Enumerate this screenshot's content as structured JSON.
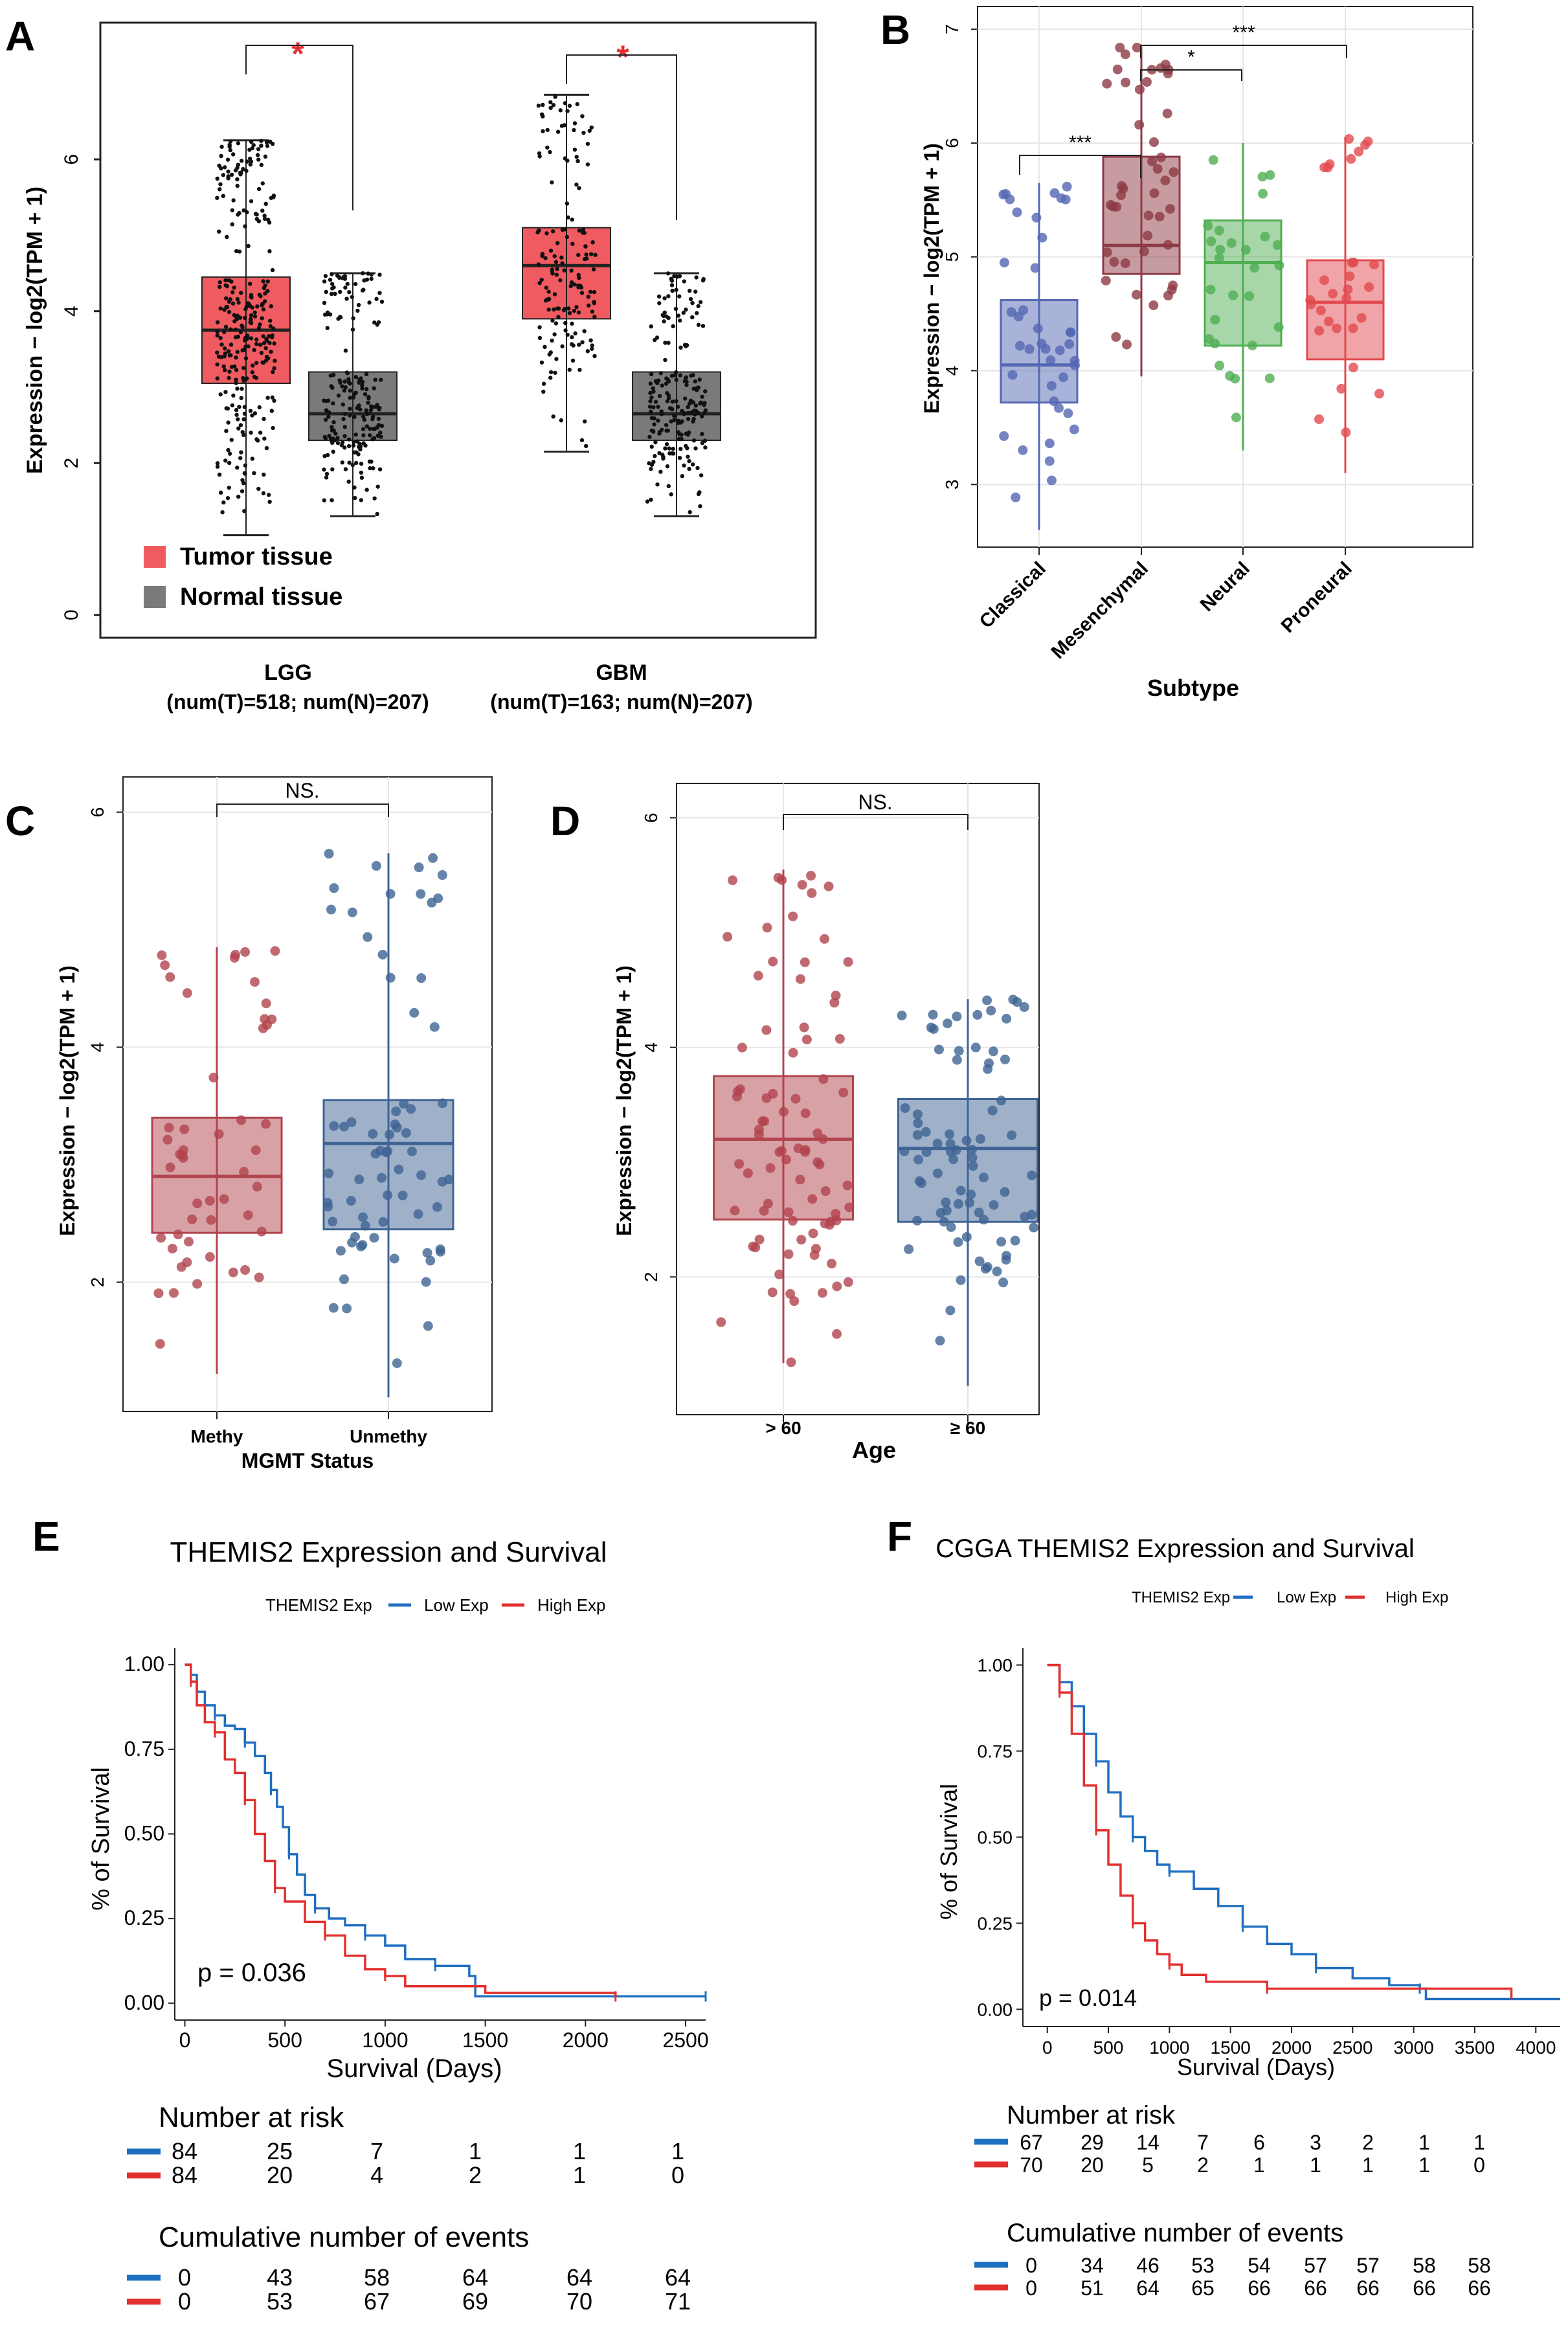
{
  "colors": {
    "tumor": "#ef5b60",
    "normal": "#7a7a7a",
    "classical": "#5467b3",
    "mesenchymal": "#8d3a44",
    "neural": "#4fae52",
    "proneural": "#e24a4f",
    "red_group": "#b2444e",
    "blue_group": "#3f6494",
    "low_exp": "#1f6fc0",
    "high_exp": "#e2302e",
    "sig_star": "#e2302e"
  },
  "chart_data": [
    {
      "panel": "A",
      "type": "box",
      "ylabel": "Expression − log2(TPM + 1)",
      "ylim": [
        -0.3,
        7.8
      ],
      "yticks": [
        0,
        2,
        4,
        6
      ],
      "groups": [
        {
          "label": "LGG",
          "sublabel": "(num(T)=518; num(N)=207)",
          "boxes": [
            {
              "name": "Tumor tissue",
              "q1": 3.05,
              "median": 3.75,
              "q3": 4.45,
              "lower": 1.05,
              "upper": 6.25,
              "n": 518
            },
            {
              "name": "Normal tissue",
              "q1": 2.3,
              "median": 2.65,
              "q3": 3.2,
              "lower": 1.3,
              "upper": 4.5,
              "n": 207
            }
          ]
        },
        {
          "label": "GBM",
          "sublabel": "(num(T)=163; num(N)=207)",
          "boxes": [
            {
              "name": "Tumor tissue",
              "q1": 3.9,
              "median": 4.6,
              "q3": 5.1,
              "lower": 2.15,
              "upper": 6.85,
              "n": 163
            },
            {
              "name": "Normal tissue",
              "q1": 2.3,
              "median": 2.65,
              "q3": 3.2,
              "lower": 1.3,
              "upper": 4.5,
              "n": 207
            }
          ]
        }
      ],
      "significance": [
        "*",
        "*"
      ],
      "legend": [
        "Tumor tissue",
        "Normal tissue"
      ]
    },
    {
      "panel": "B",
      "type": "box",
      "xlabel": "Subtype",
      "ylabel": "Expression − log2(TPM + 1)",
      "ylim": [
        2.45,
        7.2
      ],
      "yticks": [
        3,
        4,
        5,
        6,
        7
      ],
      "categories": [
        "Classical",
        "Mesenchymal",
        "Neural",
        "Proneural"
      ],
      "boxes": [
        {
          "q1": 3.72,
          "median": 4.05,
          "q3": 4.62,
          "lower": 2.6,
          "upper": 5.65
        },
        {
          "q1": 4.85,
          "median": 5.1,
          "q3": 5.88,
          "lower": 3.95,
          "upper": 6.85
        },
        {
          "q1": 4.22,
          "median": 4.95,
          "q3": 5.32,
          "lower": 3.3,
          "upper": 6.0
        },
        {
          "q1": 4.1,
          "median": 4.6,
          "q3": 4.97,
          "lower": 3.1,
          "upper": 6.05
        }
      ],
      "comparisons": [
        {
          "from": "Classical",
          "to": "Mesenchymal",
          "label": "***"
        },
        {
          "from": "Mesenchymal",
          "to": "Neural",
          "label": "*"
        },
        {
          "from": "Mesenchymal",
          "to": "Proneural",
          "label": "***"
        }
      ]
    },
    {
      "panel": "C",
      "type": "box",
      "xlabel": "MGMT Status",
      "ylabel": "Expression − log2(TPM + 1)",
      "ylim": [
        0.9,
        6.3
      ],
      "yticks": [
        2,
        4,
        6
      ],
      "categories": [
        "Methy",
        "Unmethy"
      ],
      "boxes": [
        {
          "q1": 2.42,
          "median": 2.9,
          "q3": 3.4,
          "lower": 1.22,
          "upper": 4.85
        },
        {
          "q1": 2.45,
          "median": 3.18,
          "q3": 3.55,
          "lower": 1.02,
          "upper": 5.65
        }
      ],
      "comparisons": [
        {
          "from": "Methy",
          "to": "Unmethy",
          "label": "NS."
        }
      ]
    },
    {
      "panel": "D",
      "type": "box",
      "xlabel": "Age",
      "ylabel": "Expression − log2(TPM + 1)",
      "ylim": [
        0.8,
        6.3
      ],
      "yticks": [
        2,
        4,
        6
      ],
      "categories": [
        "> 60",
        "≥ 60"
      ],
      "boxes": [
        {
          "q1": 2.5,
          "median": 3.2,
          "q3": 3.75,
          "lower": 1.25,
          "upper": 5.55
        },
        {
          "q1": 2.48,
          "median": 3.12,
          "q3": 3.55,
          "lower": 1.05,
          "upper": 4.42
        }
      ],
      "comparisons": [
        {
          "from": "> 60",
          "to": "≥ 60",
          "label": "NS."
        }
      ]
    },
    {
      "panel": "E",
      "type": "line",
      "title": "THEMIS2 Expression and Survival",
      "xlabel": "Survival (Days)",
      "ylabel": "% of Survival",
      "xlim": [
        -50,
        2600
      ],
      "ylim": [
        -0.05,
        1.05
      ],
      "xticks": [
        0,
        500,
        1000,
        1500,
        2000,
        2500
      ],
      "yticks": [
        "0.00",
        "0.25",
        "0.50",
        "0.75",
        "1.00"
      ],
      "legend_title": "THEMIS2 Exp",
      "p_value": "p = 0.036",
      "series": [
        {
          "name": "Low Exp",
          "points": [
            [
              0,
              1.0
            ],
            [
              30,
              0.97
            ],
            [
              60,
              0.92
            ],
            [
              100,
              0.88
            ],
            [
              150,
              0.85
            ],
            [
              200,
              0.82
            ],
            [
              250,
              0.81
            ],
            [
              300,
              0.77
            ],
            [
              350,
              0.73
            ],
            [
              400,
              0.68
            ],
            [
              430,
              0.63
            ],
            [
              460,
              0.58
            ],
            [
              490,
              0.52
            ],
            [
              520,
              0.44
            ],
            [
              560,
              0.38
            ],
            [
              600,
              0.32
            ],
            [
              650,
              0.28
            ],
            [
              720,
              0.25
            ],
            [
              800,
              0.23
            ],
            [
              900,
              0.2
            ],
            [
              1000,
              0.17
            ],
            [
              1100,
              0.13
            ],
            [
              1250,
              0.11
            ],
            [
              1420,
              0.08
            ],
            [
              1450,
              0.02
            ],
            [
              2600,
              0.02
            ]
          ]
        },
        {
          "name": "High Exp",
          "points": [
            [
              0,
              1.0
            ],
            [
              30,
              0.95
            ],
            [
              60,
              0.88
            ],
            [
              100,
              0.83
            ],
            [
              150,
              0.8
            ],
            [
              200,
              0.72
            ],
            [
              250,
              0.68
            ],
            [
              300,
              0.6
            ],
            [
              350,
              0.5
            ],
            [
              400,
              0.42
            ],
            [
              450,
              0.34
            ],
            [
              500,
              0.3
            ],
            [
              600,
              0.24
            ],
            [
              700,
              0.2
            ],
            [
              800,
              0.14
            ],
            [
              900,
              0.1
            ],
            [
              1000,
              0.08
            ],
            [
              1100,
              0.05
            ],
            [
              1500,
              0.03
            ],
            [
              2150,
              0.02
            ]
          ]
        }
      ],
      "risk_title": "Number at risk",
      "risk": {
        "Low Exp": [
          "84",
          "25",
          "7",
          "1",
          "1",
          "1"
        ],
        "High Exp": [
          "84",
          "20",
          "4",
          "2",
          "1",
          "0"
        ]
      },
      "events_title": "Cumulative number of events",
      "events": {
        "Low Exp": [
          "0",
          "43",
          "58",
          "64",
          "64",
          "64"
        ],
        "High Exp": [
          "0",
          "53",
          "67",
          "69",
          "70",
          "71"
        ]
      }
    },
    {
      "panel": "F",
      "type": "line",
      "title": "CGGA THEMIS2 Expression and Survival",
      "xlabel": "Survival (Days)",
      "ylabel": "% of Survival",
      "xlim": [
        -200,
        4200
      ],
      "ylim": [
        -0.05,
        1.05
      ],
      "xticks": [
        0,
        500,
        1000,
        1500,
        2000,
        2500,
        3000,
        3500,
        4000
      ],
      "yticks": [
        "0.00",
        "0.25",
        "0.50",
        "0.75",
        "1.00"
      ],
      "legend_title": "THEMIS2 Exp",
      "p_value": "p = 0.014",
      "series": [
        {
          "name": "Low Exp",
          "points": [
            [
              0,
              1.0
            ],
            [
              100,
              0.95
            ],
            [
              200,
              0.88
            ],
            [
              300,
              0.8
            ],
            [
              400,
              0.72
            ],
            [
              500,
              0.63
            ],
            [
              600,
              0.56
            ],
            [
              700,
              0.5
            ],
            [
              800,
              0.46
            ],
            [
              900,
              0.42
            ],
            [
              1000,
              0.4
            ],
            [
              1200,
              0.35
            ],
            [
              1400,
              0.3
            ],
            [
              1600,
              0.24
            ],
            [
              1800,
              0.19
            ],
            [
              2000,
              0.16
            ],
            [
              2200,
              0.12
            ],
            [
              2500,
              0.09
            ],
            [
              2800,
              0.07
            ],
            [
              3050,
              0.06
            ],
            [
              3100,
              0.03
            ],
            [
              4200,
              0.03
            ]
          ]
        },
        {
          "name": "High Exp",
          "points": [
            [
              0,
              1.0
            ],
            [
              100,
              0.92
            ],
            [
              200,
              0.8
            ],
            [
              300,
              0.65
            ],
            [
              400,
              0.52
            ],
            [
              500,
              0.42
            ],
            [
              600,
              0.33
            ],
            [
              700,
              0.25
            ],
            [
              800,
              0.2
            ],
            [
              900,
              0.16
            ],
            [
              1000,
              0.13
            ],
            [
              1100,
              0.1
            ],
            [
              1300,
              0.08
            ],
            [
              1800,
              0.06
            ],
            [
              3800,
              0.03
            ]
          ]
        }
      ],
      "risk_title": "Number at risk",
      "risk": {
        "Low Exp": [
          "67",
          "29",
          "14",
          "7",
          "6",
          "3",
          "2",
          "1",
          "1"
        ],
        "High Exp": [
          "70",
          "20",
          "5",
          "2",
          "1",
          "1",
          "1",
          "1",
          "0"
        ]
      },
      "events_title": "Cumulative number of events",
      "events": {
        "Low Exp": [
          "0",
          "34",
          "46",
          "53",
          "54",
          "57",
          "57",
          "58",
          "58"
        ],
        "High Exp": [
          "0",
          "51",
          "64",
          "65",
          "66",
          "66",
          "66",
          "66",
          "66"
        ]
      }
    }
  ],
  "panel_labels": [
    "A",
    "B",
    "C",
    "D",
    "E",
    "F"
  ],
  "legend_items": {
    "low": "Low Exp",
    "high": "High Exp"
  }
}
